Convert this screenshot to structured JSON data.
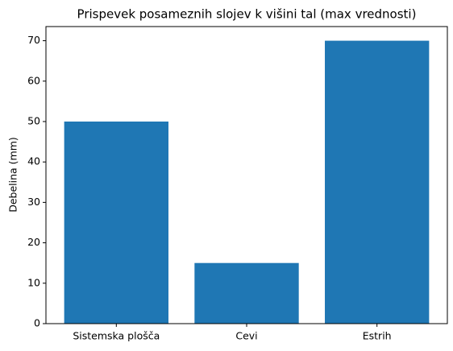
{
  "chart_data": {
    "type": "bar",
    "title": "Prispevek posameznih slojev k višini tal (max vrednosti)",
    "y_label": "Debelina (mm)",
    "categories": [
      "Sistemska plošča",
      "Cevi",
      "Estrih"
    ],
    "values": [
      50,
      15,
      70
    ],
    "color": "#1f77b4",
    "ylim": [
      0,
      73.5
    ],
    "yticks": [
      0,
      10,
      20,
      30,
      40,
      50,
      60,
      70
    ],
    "grid": false
  }
}
